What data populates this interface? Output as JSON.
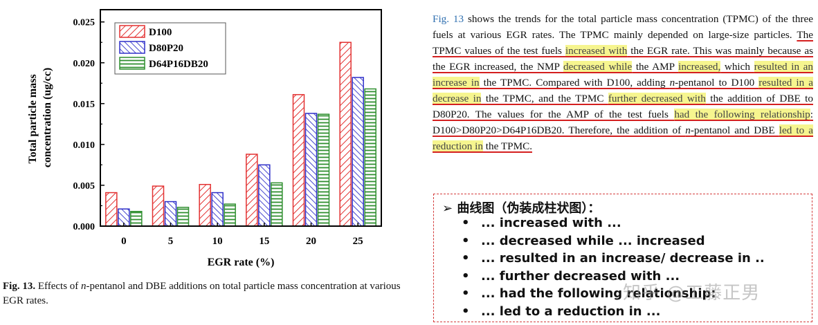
{
  "chart_data": {
    "type": "bar",
    "categories": [
      "0",
      "5",
      "10",
      "15",
      "20",
      "25"
    ],
    "series": [
      {
        "name": "D100",
        "values": [
          0.0041,
          0.0049,
          0.0051,
          0.0088,
          0.0161,
          0.0225
        ],
        "color": "#e33131",
        "pattern": "diag-up"
      },
      {
        "name": "D80P20",
        "values": [
          0.0021,
          0.003,
          0.0041,
          0.0075,
          0.0138,
          0.0182
        ],
        "color": "#2e2fc9",
        "pattern": "diag-down"
      },
      {
        "name": "D64P16DB20",
        "values": [
          0.0018,
          0.0023,
          0.0027,
          0.0053,
          0.0137,
          0.0168
        ],
        "color": "#2f8f2f",
        "pattern": "horizontal"
      }
    ],
    "xlabel": "EGR rate (%)",
    "ylabel": "Total particle mass concentration (ug/cc)",
    "ylim": [
      0,
      0.0265
    ],
    "yticks": [
      "0.000",
      "0.005",
      "0.010",
      "0.015",
      "0.020",
      "0.025"
    ],
    "grid": false,
    "legend": "top-left"
  },
  "ylabel_lines": [
    "Total particle mass",
    "concentration (ug/cc)"
  ],
  "caption": {
    "label": "Fig. 13.",
    "text_1": " Effects of ",
    "italic": "n",
    "text_2": "-pentanol and DBE additions on total particle mass concentration at various EGR rates."
  },
  "paragraph": [
    {
      "t": "Fig. 13",
      "s": "fig"
    },
    {
      "t": " shows the trends for the total particle mass concentration (TPMC) of the three fuels at various EGR rates. The TPMC mainly depended on large-size particles. "
    },
    {
      "t": "The TPMC values of the test fuels ",
      "s": "u"
    },
    {
      "t": "increased with",
      "s": "uh"
    },
    {
      "t": " the EGR rate. This was mainly because as the EGR increased, the NMP ",
      "s": "u"
    },
    {
      "t": "decreased while",
      "s": "uh"
    },
    {
      "t": " the AMP ",
      "s": "u"
    },
    {
      "t": "increased,",
      "s": "uh"
    },
    {
      "t": " which ",
      "s": "u"
    },
    {
      "t": "resulted in an increase in",
      "s": "uh"
    },
    {
      "t": " the TPMC. Compared with D100, adding ",
      "s": "u"
    },
    {
      "t": "n",
      "s": "ui"
    },
    {
      "t": "-pentanol to D100 ",
      "s": "u"
    },
    {
      "t": "resulted in a decrease in",
      "s": "uh"
    },
    {
      "t": " the TPMC, and the TPMC ",
      "s": "u"
    },
    {
      "t": "further decreased with",
      "s": "uh"
    },
    {
      "t": " the addition of DBE to D80P20. The values for the AMP of the test fuels ",
      "s": "u"
    },
    {
      "t": "had the following relationship",
      "s": "uh"
    },
    {
      "t": ": D100>D80P20>D64P16DB20. Therefore, the addition of ",
      "s": "u"
    },
    {
      "t": "n",
      "s": "ui"
    },
    {
      "t": "-pentanol and DBE ",
      "s": "u"
    },
    {
      "t": "led to a reduction in",
      "s": "uh"
    },
    {
      "t": " the TPMC.",
      "s": "u"
    }
  ],
  "summary_box": {
    "title": "➢  曲线图（伪装成柱状图）：",
    "items": [
      "... increased with ...",
      "... decreased while ... increased",
      "... resulted in an increase/ decrease in ..",
      "... further decreased with ...",
      "... had the following relationship:",
      "... led to a reduction in ..."
    ]
  },
  "watermark": "知乎 @工藤正男"
}
